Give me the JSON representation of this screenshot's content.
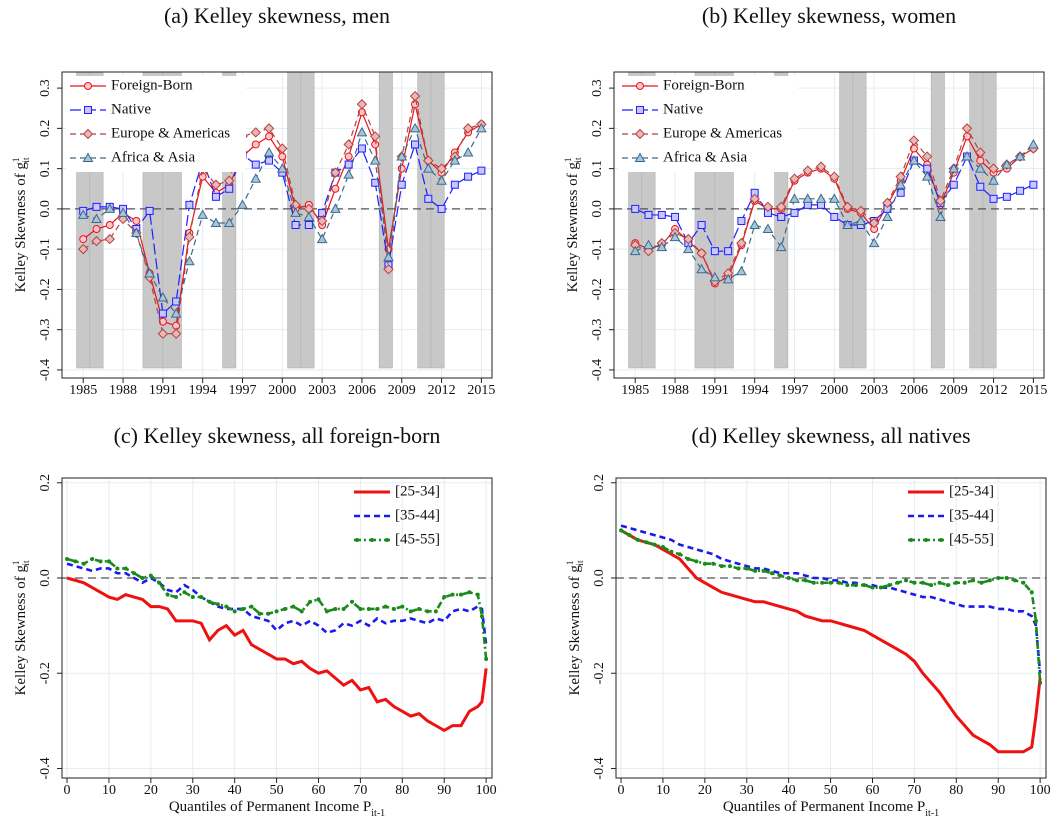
{
  "chart_data": [
    {
      "type": "line",
      "title": "(a) Kelley skewness, men",
      "ylabel": "Kelley Skewness of g",
      "ylabel_sup": "1",
      "ylabel_sub": "it",
      "x": [
        1985,
        1986,
        1987,
        1988,
        1989,
        1990,
        1991,
        1992,
        1993,
        1994,
        1995,
        1996,
        1997,
        1998,
        1999,
        2000,
        2001,
        2002,
        2003,
        2004,
        2005,
        2006,
        2007,
        2008,
        2009,
        2010,
        2011,
        2012,
        2013,
        2014,
        2015
      ],
      "series": [
        {
          "name": "Foreign-Born",
          "color": "#e8141c",
          "marker": "circle",
          "dash": "solid",
          "values": [
            -0.075,
            -0.05,
            -0.04,
            -0.01,
            -0.03,
            -0.16,
            -0.28,
            -0.29,
            -0.06,
            0.08,
            0.04,
            0.06,
            0.13,
            0.16,
            0.18,
            0.13,
            0.0,
            0.01,
            -0.04,
            0.05,
            0.13,
            0.24,
            0.16,
            -0.1,
            0.1,
            0.26,
            0.12,
            0.09,
            0.14,
            0.19,
            0.21
          ]
        },
        {
          "name": "Native",
          "color": "#1f1fff",
          "marker": "square",
          "dash": "longdash",
          "values": [
            -0.005,
            0.005,
            0.005,
            0.0,
            -0.05,
            -0.005,
            -0.26,
            -0.23,
            0.01,
            0.12,
            0.03,
            0.05,
            0.135,
            0.11,
            0.12,
            0.09,
            -0.04,
            -0.04,
            -0.01,
            0.09,
            0.11,
            0.15,
            0.065,
            -0.14,
            0.06,
            0.16,
            0.025,
            0.0,
            0.06,
            0.08,
            0.095
          ]
        },
        {
          "name": "Europe & Americas",
          "color": "#b5423f",
          "marker": "diamond",
          "dash": "dashed",
          "values": [
            -0.1,
            -0.08,
            -0.075,
            -0.025,
            -0.06,
            -0.17,
            -0.31,
            -0.31,
            -0.07,
            0.1,
            0.06,
            0.07,
            0.18,
            0.19,
            0.2,
            0.15,
            0.01,
            0.0,
            -0.03,
            0.09,
            0.16,
            0.26,
            0.18,
            -0.15,
            0.13,
            0.28,
            0.12,
            0.1,
            0.13,
            0.2,
            0.21
          ]
        },
        {
          "name": "Africa & Asia",
          "color": "#3d6a8c",
          "marker": "triangle",
          "dash": "dashed",
          "values": [
            -0.015,
            -0.025,
            0.0,
            -0.01,
            -0.06,
            -0.16,
            -0.22,
            -0.26,
            -0.13,
            -0.015,
            -0.035,
            -0.035,
            0.01,
            0.075,
            0.14,
            0.1,
            -0.01,
            -0.02,
            -0.075,
            0.0,
            0.085,
            0.19,
            0.12,
            -0.12,
            0.13,
            0.2,
            0.1,
            0.07,
            0.12,
            0.14,
            0.2
          ]
        }
      ],
      "xlim": [
        1983.4,
        2015.8
      ],
      "ylim": [
        -0.42,
        0.34
      ],
      "xticks": [
        1985,
        1988,
        1991,
        1994,
        1997,
        2000,
        2003,
        2006,
        2009,
        2012,
        2015
      ],
      "yticks": [
        -0.4,
        -0.3,
        -0.2,
        -0.1,
        {
          "value": 0,
          "label": "0.0"
        },
        0.1,
        0.2,
        0.3
      ],
      "grid": true,
      "legend": "upper left",
      "reference_line": 0,
      "shaded_periods": [
        [
          1984.5,
          1985.5
        ],
        [
          1985.5,
          1986.5
        ],
        [
          1989.5,
          1991
        ],
        [
          1991,
          1992.4
        ],
        [
          1995.5,
          1996.5
        ],
        [
          2000.4,
          2001.4
        ],
        [
          2001.4,
          2002.4
        ],
        [
          2007.3,
          2008.3
        ],
        [
          2010.2,
          2011.2
        ],
        [
          2011.2,
          2012.2
        ]
      ]
    },
    {
      "type": "line",
      "title": "(b) Kelley skewness, women",
      "ylabel": "Kelley Skewness of g",
      "ylabel_sup": "1",
      "ylabel_sub": "it",
      "x": [
        1985,
        1986,
        1987,
        1988,
        1989,
        1990,
        1991,
        1992,
        1993,
        1994,
        1995,
        1996,
        1997,
        1998,
        1999,
        2000,
        2001,
        2002,
        2003,
        2004,
        2005,
        2006,
        2007,
        2008,
        2009,
        2010,
        2011,
        2012,
        2013,
        2014,
        2015
      ],
      "series": [
        {
          "name": "Foreign-Born",
          "color": "#e8141c",
          "marker": "circle",
          "dash": "solid",
          "values": [
            -0.085,
            -0.1,
            -0.09,
            -0.05,
            -0.08,
            -0.11,
            -0.185,
            -0.17,
            -0.09,
            0.02,
            0.0,
            0.0,
            0.07,
            0.09,
            0.1,
            0.075,
            0.0,
            -0.01,
            -0.05,
            0.01,
            0.07,
            0.15,
            0.11,
            0.01,
            0.09,
            0.18,
            0.12,
            0.09,
            0.1,
            0.13,
            0.15
          ]
        },
        {
          "name": "Native",
          "color": "#1f1fff",
          "marker": "square",
          "dash": "longdash",
          "values": [
            0.0,
            -0.015,
            -0.015,
            -0.02,
            -0.085,
            -0.04,
            -0.105,
            -0.105,
            -0.03,
            0.04,
            -0.01,
            -0.02,
            -0.01,
            0.01,
            0.01,
            -0.02,
            -0.04,
            -0.04,
            -0.03,
            0.0,
            0.04,
            0.12,
            0.1,
            0.015,
            0.06,
            0.13,
            0.055,
            0.025,
            0.03,
            0.045,
            0.06
          ]
        },
        {
          "name": "Europe & Americas",
          "color": "#b5423f",
          "marker": "diamond",
          "dash": "dashed",
          "values": [
            -0.09,
            -0.105,
            -0.085,
            -0.06,
            -0.075,
            -0.11,
            -0.18,
            -0.16,
            -0.085,
            0.025,
            0.005,
            0.005,
            0.075,
            0.095,
            0.105,
            0.08,
            0.005,
            -0.005,
            -0.035,
            0.015,
            0.08,
            0.17,
            0.13,
            0.02,
            0.1,
            0.2,
            0.14,
            0.1,
            0.11,
            0.13,
            0.15
          ]
        },
        {
          "name": "Africa & Asia",
          "color": "#3d6a8c",
          "marker": "triangle",
          "dash": "dashed",
          "values": [
            -0.105,
            -0.09,
            -0.095,
            -0.07,
            -0.1,
            -0.15,
            -0.17,
            -0.175,
            -0.155,
            -0.04,
            -0.05,
            -0.095,
            0.025,
            0.025,
            0.025,
            0.025,
            -0.04,
            -0.03,
            -0.085,
            -0.02,
            0.06,
            0.12,
            0.08,
            -0.02,
            0.1,
            0.13,
            0.1,
            0.07,
            0.11,
            0.13,
            0.16
          ]
        }
      ],
      "xlim": [
        1983.4,
        2015.8
      ],
      "ylim": [
        -0.42,
        0.34
      ],
      "xticks": [
        1985,
        1988,
        1991,
        1994,
        1997,
        2000,
        2003,
        2006,
        2009,
        2012,
        2015
      ],
      "yticks": [
        -0.4,
        -0.3,
        -0.2,
        -0.1,
        {
          "value": 0,
          "label": "0.0"
        },
        0.1,
        0.2,
        0.3
      ],
      "grid": true,
      "legend": "upper left",
      "reference_line": 0,
      "shaded_periods": [
        [
          1984.5,
          1985.5
        ],
        [
          1985.5,
          1986.5
        ],
        [
          1989.5,
          1991
        ],
        [
          1991,
          1992.4
        ],
        [
          1995.5,
          1996.5
        ],
        [
          2000.4,
          2001.4
        ],
        [
          2001.4,
          2002.4
        ],
        [
          2007.3,
          2008.3
        ],
        [
          2010.2,
          2011.2
        ],
        [
          2011.2,
          2012.2
        ]
      ]
    },
    {
      "type": "line",
      "title": "(c) Kelley skewness, all foreign-born",
      "ylabel": "Kelley Skewness of g",
      "ylabel_sup": "1",
      "ylabel_sub": "it",
      "xlabel": "Quantiles of Permanent Income P",
      "xlabel_sub": "it-1",
      "x": [
        0,
        2,
        4,
        6,
        8,
        10,
        12,
        14,
        16,
        18,
        20,
        22,
        24,
        26,
        28,
        30,
        32,
        34,
        36,
        38,
        40,
        42,
        44,
        46,
        48,
        50,
        52,
        54,
        56,
        58,
        60,
        62,
        64,
        66,
        68,
        70,
        72,
        74,
        76,
        78,
        80,
        82,
        84,
        86,
        88,
        90,
        92,
        94,
        96,
        98,
        99,
        100
      ],
      "series": [
        {
          "name": "[25-34]",
          "color": "#ee1111",
          "marker": "none",
          "dash": "solid",
          "values": [
            0,
            -0.005,
            -0.01,
            -0.02,
            -0.03,
            -0.04,
            -0.045,
            -0.035,
            -0.04,
            -0.045,
            -0.06,
            -0.06,
            -0.065,
            -0.09,
            -0.09,
            -0.09,
            -0.095,
            -0.13,
            -0.11,
            -0.1,
            -0.12,
            -0.11,
            -0.14,
            -0.15,
            -0.16,
            -0.17,
            -0.17,
            -0.18,
            -0.175,
            -0.19,
            -0.2,
            -0.195,
            -0.21,
            -0.225,
            -0.215,
            -0.235,
            -0.23,
            -0.26,
            -0.255,
            -0.27,
            -0.28,
            -0.29,
            -0.285,
            -0.3,
            -0.31,
            -0.32,
            -0.31,
            -0.31,
            -0.28,
            -0.27,
            -0.26,
            -0.19
          ]
        },
        {
          "name": "[35-44]",
          "color": "#1a1aee",
          "marker": "none",
          "dash": "dashed",
          "values": [
            0.03,
            0.025,
            0.02,
            0.015,
            0.02,
            0.02,
            0.01,
            0.01,
            0.0,
            -0.01,
            0.0,
            -0.01,
            -0.025,
            -0.03,
            -0.015,
            -0.025,
            -0.04,
            -0.05,
            -0.06,
            -0.065,
            -0.065,
            -0.065,
            -0.08,
            -0.085,
            -0.09,
            -0.11,
            -0.095,
            -0.09,
            -0.1,
            -0.09,
            -0.1,
            -0.115,
            -0.11,
            -0.095,
            -0.1,
            -0.09,
            -0.1,
            -0.085,
            -0.095,
            -0.09,
            -0.09,
            -0.085,
            -0.09,
            -0.095,
            -0.085,
            -0.09,
            -0.07,
            -0.065,
            -0.07,
            -0.06,
            -0.065,
            -0.14
          ]
        },
        {
          "name": "[45-55]",
          "color": "#1a8a1a",
          "marker": "dot",
          "dash": "dashdot",
          "values": [
            0.04,
            0.035,
            0.03,
            0.04,
            0.035,
            0.035,
            0.02,
            0.02,
            0.01,
            0.0,
            0.005,
            -0.01,
            -0.035,
            -0.04,
            -0.03,
            -0.04,
            -0.04,
            -0.05,
            -0.055,
            -0.06,
            -0.07,
            -0.065,
            -0.06,
            -0.075,
            -0.075,
            -0.07,
            -0.065,
            -0.06,
            -0.07,
            -0.05,
            -0.045,
            -0.07,
            -0.065,
            -0.065,
            -0.05,
            -0.065,
            -0.065,
            -0.065,
            -0.06,
            -0.065,
            -0.06,
            -0.07,
            -0.065,
            -0.07,
            -0.07,
            -0.04,
            -0.035,
            -0.035,
            -0.03,
            -0.035,
            -0.08,
            -0.17
          ]
        }
      ],
      "xlim": [
        -1.2,
        101.4
      ],
      "ylim": [
        -0.42,
        0.21
      ],
      "xticks": [
        0,
        10,
        20,
        30,
        40,
        50,
        60,
        70,
        80,
        90,
        100
      ],
      "yticks": [
        -0.4,
        -0.2,
        {
          "value": 0,
          "label": "0.0"
        },
        0.2
      ],
      "grid": true,
      "legend": "upper right",
      "reference_line": 0
    },
    {
      "type": "line",
      "title": "(d) Kelley skewness, all natives",
      "ylabel": "Kelley Skewness of g",
      "ylabel_sup": "1",
      "ylabel_sub": "it",
      "xlabel": "Quantiles of Permanent Income P",
      "xlabel_sub": "it-1",
      "x": [
        0,
        2,
        4,
        6,
        8,
        10,
        12,
        14,
        16,
        18,
        20,
        22,
        24,
        26,
        28,
        30,
        32,
        34,
        36,
        38,
        40,
        42,
        44,
        46,
        48,
        50,
        52,
        54,
        56,
        58,
        60,
        62,
        64,
        66,
        68,
        70,
        72,
        74,
        76,
        78,
        80,
        82,
        84,
        86,
        88,
        90,
        92,
        94,
        96,
        98,
        99,
        100
      ],
      "series": [
        {
          "name": "[25-34]",
          "color": "#ee1111",
          "marker": "none",
          "dash": "solid",
          "values": [
            0.1,
            0.09,
            0.08,
            0.075,
            0.07,
            0.06,
            0.05,
            0.04,
            0.02,
            0.0,
            -0.01,
            -0.02,
            -0.03,
            -0.035,
            -0.04,
            -0.045,
            -0.05,
            -0.05,
            -0.055,
            -0.06,
            -0.065,
            -0.07,
            -0.08,
            -0.085,
            -0.09,
            -0.09,
            -0.095,
            -0.1,
            -0.105,
            -0.11,
            -0.12,
            -0.13,
            -0.14,
            -0.15,
            -0.16,
            -0.175,
            -0.2,
            -0.22,
            -0.24,
            -0.265,
            -0.29,
            -0.31,
            -0.33,
            -0.34,
            -0.35,
            -0.365,
            -0.365,
            -0.365,
            -0.365,
            -0.355,
            -0.29,
            -0.21
          ]
        },
        {
          "name": "[35-44]",
          "color": "#1a1aee",
          "marker": "none",
          "dash": "dashed",
          "values": [
            0.11,
            0.105,
            0.1,
            0.095,
            0.09,
            0.085,
            0.08,
            0.07,
            0.065,
            0.06,
            0.055,
            0.05,
            0.04,
            0.035,
            0.03,
            0.025,
            0.02,
            0.02,
            0.015,
            0.01,
            0.01,
            0.01,
            0.005,
            0.0,
            0.0,
            -0.005,
            -0.005,
            -0.01,
            -0.01,
            -0.015,
            -0.015,
            -0.02,
            -0.02,
            -0.025,
            -0.03,
            -0.035,
            -0.04,
            -0.04,
            -0.045,
            -0.05,
            -0.055,
            -0.06,
            -0.06,
            -0.06,
            -0.06,
            -0.065,
            -0.065,
            -0.07,
            -0.07,
            -0.08,
            -0.1,
            -0.2
          ]
        },
        {
          "name": "[45-55]",
          "color": "#1a8a1a",
          "marker": "dot",
          "dash": "dashdot",
          "values": [
            0.1,
            0.09,
            0.08,
            0.075,
            0.07,
            0.065,
            0.055,
            0.05,
            0.04,
            0.035,
            0.03,
            0.03,
            0.025,
            0.025,
            0.02,
            0.02,
            0.015,
            0.015,
            0.01,
            0.005,
            0.0,
            -0.005,
            -0.005,
            -0.01,
            -0.01,
            -0.01,
            -0.01,
            -0.015,
            -0.015,
            -0.015,
            -0.02,
            -0.02,
            -0.015,
            -0.01,
            -0.005,
            -0.01,
            -0.01,
            -0.015,
            -0.01,
            -0.015,
            -0.01,
            -0.01,
            -0.005,
            -0.01,
            -0.005,
            0.0,
            0.0,
            -0.005,
            -0.01,
            -0.03,
            -0.09,
            -0.22
          ]
        }
      ],
      "xlim": [
        -1.2,
        101.4
      ],
      "ylim": [
        -0.42,
        0.21
      ],
      "xticks": [
        0,
        10,
        20,
        30,
        40,
        50,
        60,
        70,
        80,
        90,
        100
      ],
      "yticks": [
        -0.4,
        -0.2,
        {
          "value": 0,
          "label": "0.0"
        },
        0.2
      ],
      "grid": true,
      "legend": "upper right",
      "reference_line": 0
    }
  ]
}
